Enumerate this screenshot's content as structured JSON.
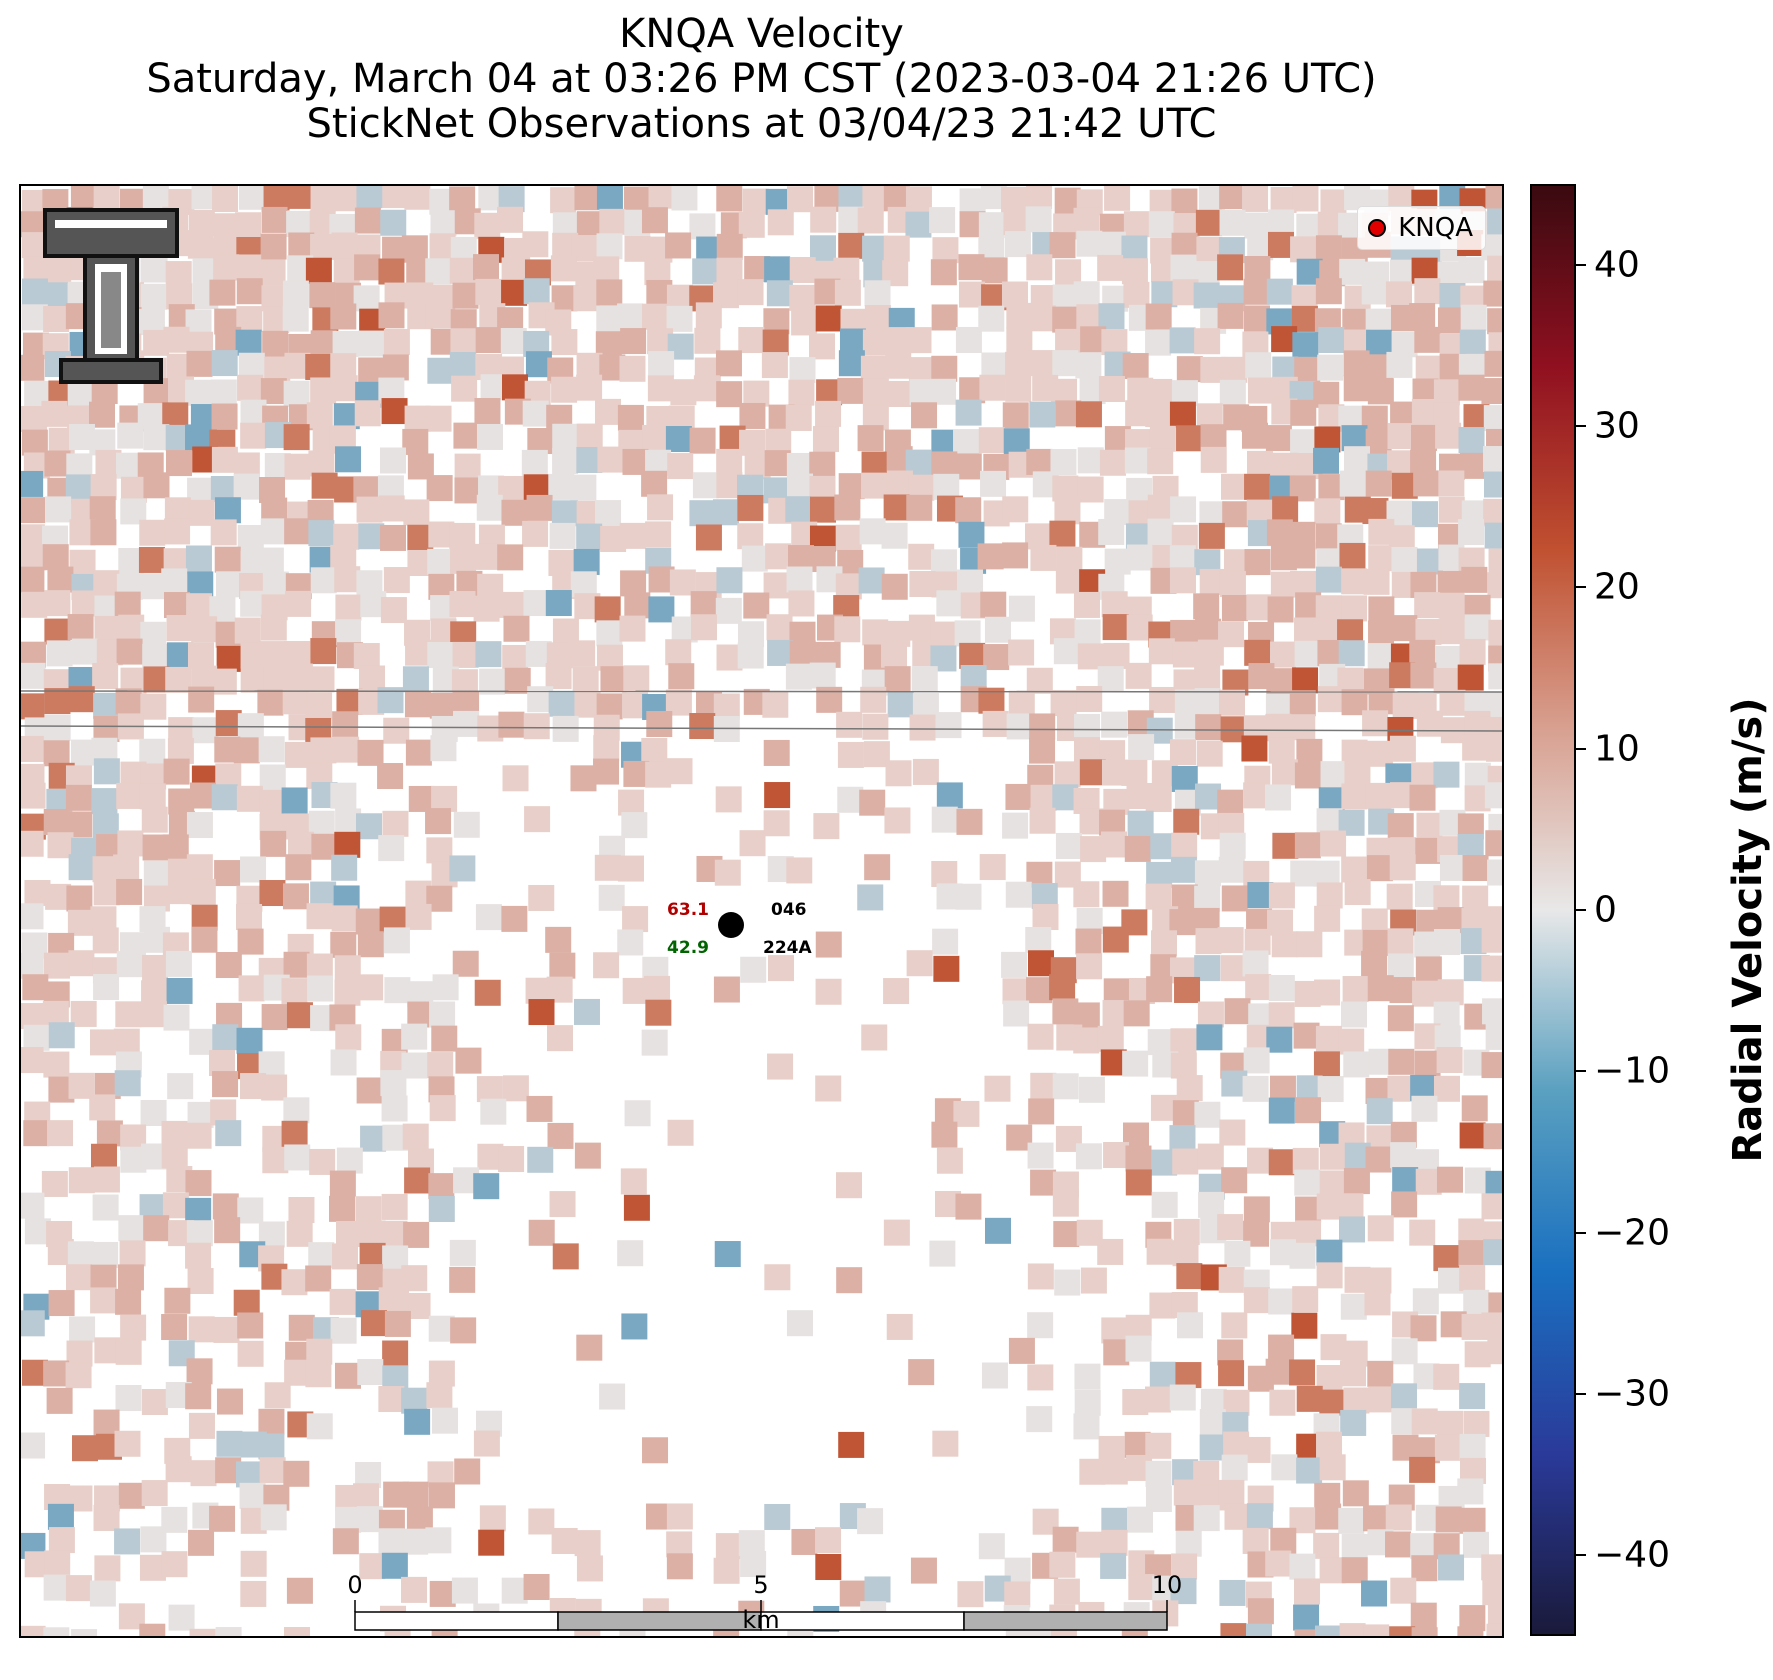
{
  "title": {
    "line1": "KNQA Velocity",
    "line2": "Saturday, March 04 at 03:26 PM CST (2023-03-04 21:26 UTC)",
    "line3": "StickNet Observations at 03/04/23 21:42 UTC"
  },
  "legend": {
    "label": "KNQA",
    "marker_color": "#e00000"
  },
  "logo": {
    "name": "Texas Tech double-T logo"
  },
  "station": {
    "temp": "63.1",
    "dewpoint": "42.9",
    "id_top": "046",
    "id_bottom": "224A"
  },
  "scalebar": {
    "ticks": [
      "0",
      "5",
      "10"
    ],
    "unit": "km"
  },
  "colorbar": {
    "label": "Radial Velocity (m/s)",
    "ticks": [
      "40",
      "30",
      "20",
      "10",
      "0",
      "−10",
      "−20",
      "−30",
      "−40"
    ],
    "range": [
      -45,
      45
    ],
    "colors": [
      "#1a1a3a",
      "#2a3a9a",
      "#1a70c0",
      "#5aa0c0",
      "#e8e8e8",
      "#d8a090",
      "#c05030",
      "#901020",
      "#3a0a10"
    ]
  },
  "colors": {
    "light_pink": "#e8cfc9",
    "pink": "#dcb0a5",
    "salmon": "#cc7a60",
    "red": "#c05536",
    "light_blue": "#b9cad4",
    "blue": "#7aa8c2",
    "gray": "#e6e2e1"
  }
}
